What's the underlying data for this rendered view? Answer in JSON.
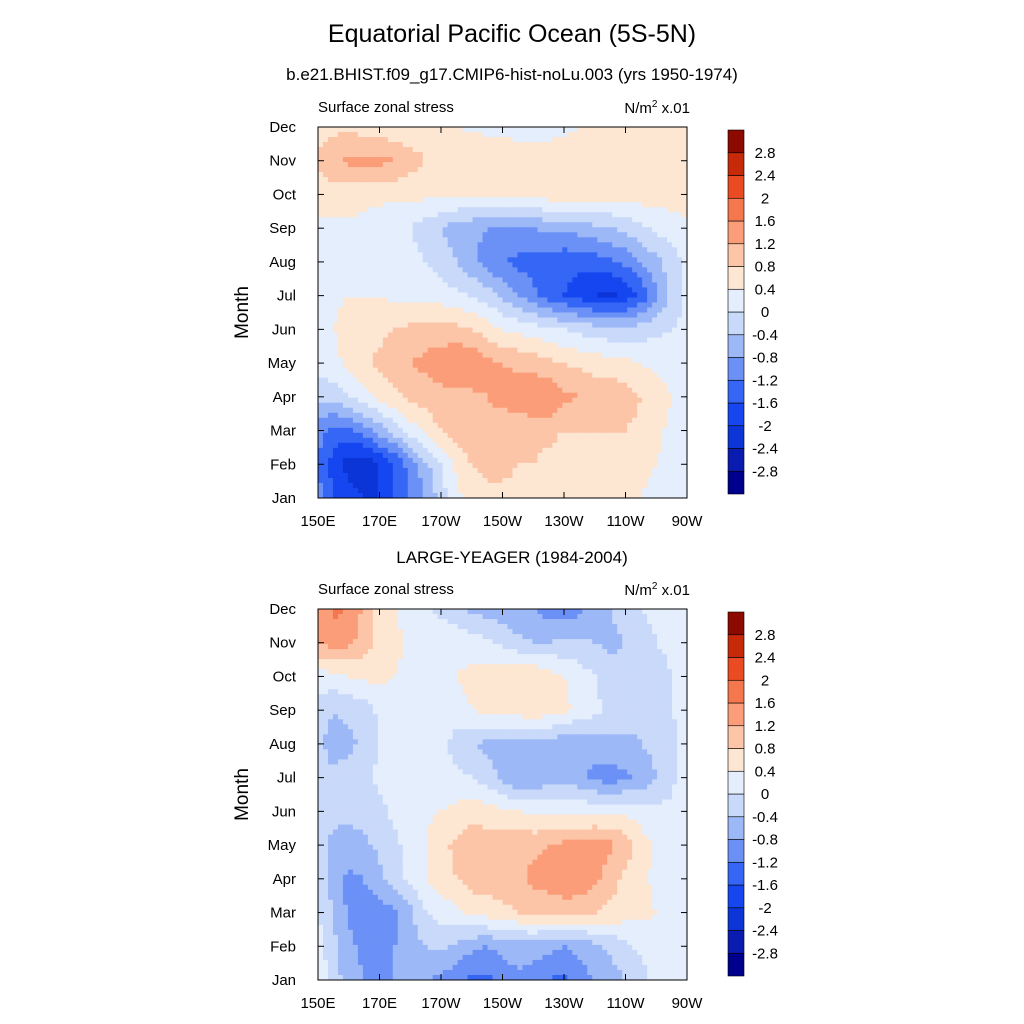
{
  "title": "Equatorial Pacific Ocean (5S-5N)",
  "chart_data": [
    {
      "type": "heatmap",
      "subtitle": "b.e21.BHIST.f09_g17.CMIP6-hist-noLu.003 (yrs 1950-1974)",
      "left_string": "Surface zonal stress",
      "right_string": "N/m",
      "right_superscript": "2",
      "right_suffix": " x.01",
      "ylabel": "Month",
      "x_ticks": [
        "150E",
        "170E",
        "170W",
        "150W",
        "130W",
        "110W",
        "90W"
      ],
      "y_ticks": [
        "Jan",
        "Feb",
        "Mar",
        "Apr",
        "May",
        "Jun",
        "Jul",
        "Aug",
        "Sep",
        "Oct",
        "Nov",
        "Dec"
      ],
      "x_lon": [
        150,
        155,
        160,
        165,
        170,
        175,
        180,
        185,
        190,
        195,
        200,
        205,
        210,
        215,
        220,
        225,
        230,
        235,
        240,
        245,
        250,
        255,
        260,
        265,
        270
      ],
      "z": [
        [
          -1.0,
          -1.6,
          -1.8,
          -2.0,
          -2.0,
          -1.6,
          -1.2,
          -0.8,
          -0.2,
          0.3,
          0.6,
          0.7,
          0.7,
          0.7,
          0.6,
          0.5,
          0.5,
          0.5,
          0.5,
          0.5,
          0.4,
          0.4,
          0.3,
          0.2,
          0.2
        ],
        [
          -1.2,
          -1.8,
          -2.2,
          -2.3,
          -2.0,
          -1.6,
          -1.0,
          -0.5,
          0.0,
          0.5,
          0.8,
          0.9,
          0.9,
          0.8,
          0.8,
          0.7,
          0.6,
          0.6,
          0.6,
          0.6,
          0.5,
          0.5,
          0.4,
          0.3,
          0.2
        ],
        [
          -1.0,
          -1.4,
          -1.3,
          -1.0,
          -0.6,
          -0.2,
          0.2,
          0.5,
          0.8,
          1.0,
          1.1,
          1.1,
          1.0,
          0.9,
          0.9,
          0.9,
          0.8,
          0.8,
          0.8,
          0.8,
          0.8,
          0.7,
          0.5,
          0.3,
          0.2
        ],
        [
          -0.3,
          -0.2,
          0.0,
          0.3,
          0.5,
          0.7,
          0.9,
          1.0,
          1.1,
          1.1,
          1.1,
          1.2,
          1.3,
          1.5,
          1.6,
          1.6,
          1.3,
          1.2,
          1.1,
          1.1,
          1.0,
          0.8,
          0.6,
          0.4,
          0.2
        ],
        [
          0.2,
          0.3,
          0.5,
          0.7,
          0.9,
          1.0,
          1.2,
          1.3,
          1.4,
          1.6,
          1.6,
          1.3,
          1.2,
          1.1,
          1.0,
          0.9,
          0.8,
          0.7,
          0.6,
          0.6,
          0.5,
          0.4,
          0.3,
          0.2,
          0.1
        ],
        [
          0.3,
          0.4,
          0.5,
          0.6,
          0.7,
          0.8,
          0.9,
          1.0,
          1.0,
          0.9,
          0.8,
          0.6,
          0.4,
          0.3,
          0.2,
          0.1,
          0.0,
          -0.1,
          -0.2,
          -0.3,
          -0.3,
          -0.2,
          -0.1,
          0.0,
          0.1
        ],
        [
          0.3,
          0.35,
          0.4,
          0.4,
          0.4,
          0.3,
          0.3,
          0.2,
          0.2,
          0.1,
          0.0,
          -0.2,
          -0.5,
          -0.8,
          -1.1,
          -1.4,
          -1.6,
          -1.8,
          -2.0,
          -2.1,
          -1.9,
          -1.5,
          -0.9,
          -0.3,
          0.1
        ],
        [
          0.2,
          0.3,
          0.3,
          0.3,
          0.3,
          0.2,
          0.1,
          0.0,
          -0.2,
          -0.4,
          -0.7,
          -1.0,
          -1.2,
          -1.3,
          -1.4,
          -1.4,
          -1.5,
          -1.5,
          -1.4,
          -1.3,
          -1.1,
          -0.8,
          -0.5,
          -0.2,
          0.1
        ],
        [
          0.3,
          0.3,
          0.3,
          0.3,
          0.2,
          0.1,
          0.0,
          -0.2,
          -0.4,
          -0.6,
          -0.7,
          -0.8,
          -0.8,
          -0.8,
          -0.8,
          -0.7,
          -0.7,
          -0.6,
          -0.5,
          -0.4,
          -0.3,
          -0.1,
          0.1,
          0.2,
          0.3
        ],
        [
          0.6,
          0.6,
          0.6,
          0.5,
          0.5,
          0.5,
          0.5,
          0.5,
          0.5,
          0.5,
          0.5,
          0.6,
          0.6,
          0.6,
          0.6,
          0.6,
          0.7,
          0.6,
          0.6,
          0.6,
          0.6,
          0.6,
          0.6,
          0.6,
          0.6
        ],
        [
          0.9,
          1.1,
          1.3,
          1.3,
          1.3,
          1.2,
          1.0,
          0.8,
          0.7,
          0.7,
          0.7,
          0.7,
          0.7,
          0.7,
          0.7,
          0.7,
          0.7,
          0.7,
          0.7,
          0.7,
          0.7,
          0.7,
          0.7,
          0.7,
          0.7
        ],
        [
          0.6,
          0.7,
          0.7,
          0.6,
          0.6,
          0.5,
          0.5,
          0.5,
          0.45,
          0.4,
          0.35,
          0.3,
          0.25,
          0.2,
          0.2,
          0.2,
          0.3,
          0.4,
          0.5,
          0.6,
          0.7,
          0.7,
          0.7,
          0.7,
          0.6
        ]
      ]
    },
    {
      "type": "heatmap",
      "subtitle": "LARGE-YEAGER (1984-2004)",
      "left_string": "Surface zonal stress",
      "right_string": "N/m",
      "right_superscript": "2",
      "right_suffix": " x.01",
      "ylabel": "Month",
      "x_ticks": [
        "150E",
        "170E",
        "170W",
        "150W",
        "130W",
        "110W",
        "90W"
      ],
      "y_ticks": [
        "Jan",
        "Feb",
        "Mar",
        "Apr",
        "May",
        "Jun",
        "Jul",
        "Aug",
        "Sep",
        "Oct",
        "Nov",
        "Dec"
      ],
      "x_lon": [
        150,
        155,
        160,
        165,
        170,
        175,
        180,
        185,
        190,
        195,
        200,
        205,
        210,
        215,
        220,
        225,
        230,
        235,
        240,
        245,
        250,
        255,
        260,
        265,
        270
      ],
      "z": [
        [
          0.3,
          -0.2,
          -0.6,
          -0.8,
          -0.8,
          -0.8,
          -0.8,
          -0.8,
          -0.9,
          -1.1,
          -1.3,
          -1.3,
          -1.0,
          -0.9,
          -1.0,
          -1.2,
          -1.3,
          -1.0,
          -0.8,
          -0.6,
          -0.4,
          -0.2,
          0.2,
          0.3,
          0.3
        ],
        [
          0.2,
          -0.3,
          -0.7,
          -0.9,
          -0.9,
          -0.8,
          -0.6,
          -0.4,
          -0.3,
          -0.5,
          -0.7,
          -0.8,
          -0.7,
          -0.6,
          -0.6,
          -0.7,
          -0.8,
          -0.7,
          -0.5,
          -0.3,
          -0.1,
          0.1,
          0.3,
          0.4,
          0.3
        ],
        [
          0.0,
          -0.4,
          -0.9,
          -1.0,
          -1.0,
          -0.9,
          -0.5,
          0.0,
          0.2,
          0.3,
          0.5,
          0.6,
          0.7,
          0.8,
          0.9,
          0.9,
          1.0,
          0.9,
          0.8,
          0.7,
          0.6,
          0.5,
          0.4,
          0.3,
          0.2
        ],
        [
          -0.2,
          -0.6,
          -0.9,
          -0.8,
          -0.5,
          -0.2,
          0.1,
          0.4,
          0.6,
          0.8,
          1.0,
          1.0,
          1.0,
          1.1,
          1.3,
          1.4,
          1.5,
          1.5,
          1.3,
          1.0,
          0.7,
          0.5,
          0.3,
          0.2,
          0.2
        ],
        [
          -0.2,
          -0.5,
          -0.6,
          -0.5,
          -0.3,
          -0.1,
          0.2,
          0.4,
          0.7,
          0.9,
          1.1,
          1.0,
          1.0,
          1.1,
          1.1,
          1.2,
          1.3,
          1.3,
          1.4,
          1.3,
          1.0,
          0.6,
          0.3,
          0.2,
          0.2
        ],
        [
          -0.2,
          -0.3,
          -0.3,
          -0.2,
          -0.1,
          0.1,
          0.2,
          0.3,
          0.4,
          0.5,
          0.6,
          0.6,
          0.5,
          0.4,
          0.3,
          0.3,
          0.3,
          0.3,
          0.3,
          0.3,
          0.3,
          0.2,
          0.1,
          0.1,
          0.2
        ],
        [
          -0.2,
          -0.3,
          -0.2,
          -0.1,
          0.1,
          0.2,
          0.3,
          0.3,
          0.2,
          0.1,
          0.0,
          -0.2,
          -0.5,
          -0.8,
          -0.8,
          -0.6,
          -0.5,
          -0.7,
          -0.9,
          -1.0,
          -0.9,
          -0.7,
          -0.4,
          -0.1,
          0.2
        ],
        [
          -0.3,
          -0.6,
          -0.5,
          -0.3,
          0.0,
          0.2,
          0.3,
          0.3,
          0.1,
          -0.2,
          -0.4,
          -0.5,
          -0.6,
          -0.5,
          -0.5,
          -0.6,
          -0.7,
          -0.7,
          -0.6,
          -0.5,
          -0.5,
          -0.4,
          -0.3,
          -0.1,
          0.1
        ],
        [
          -0.2,
          -0.4,
          -0.3,
          -0.2,
          0.1,
          0.2,
          0.3,
          0.3,
          0.3,
          0.3,
          0.4,
          0.5,
          0.6,
          0.6,
          0.7,
          0.6,
          0.5,
          0.3,
          0.1,
          -0.1,
          -0.2,
          -0.3,
          -0.2,
          0.0,
          0.1
        ],
        [
          0.2,
          0.3,
          0.4,
          0.5,
          0.5,
          0.4,
          0.3,
          0.3,
          0.3,
          0.4,
          0.5,
          0.6,
          0.7,
          0.8,
          0.8,
          0.6,
          0.4,
          0.2,
          0.0,
          -0.2,
          -0.3,
          -0.3,
          -0.2,
          0.0,
          0.1
        ],
        [
          1.2,
          1.4,
          1.3,
          1.0,
          0.7,
          0.5,
          0.3,
          0.3,
          0.3,
          0.3,
          0.2,
          0.1,
          -0.1,
          -0.3,
          -0.4,
          -0.4,
          -0.3,
          -0.3,
          -0.4,
          -0.5,
          -0.4,
          -0.2,
          0.0,
          0.1,
          0.2
        ],
        [
          1.2,
          1.7,
          1.6,
          1.1,
          0.6,
          0.4,
          0.3,
          0.1,
          -0.1,
          -0.3,
          -0.5,
          -0.6,
          -0.6,
          -0.7,
          -0.8,
          -1.0,
          -1.1,
          -0.9,
          -0.6,
          -0.4,
          -0.2,
          0.0,
          0.1,
          0.2,
          0.2
        ]
      ]
    }
  ],
  "colorbar": {
    "levels": [
      -2.8,
      -2.4,
      -2,
      -1.6,
      -1.2,
      -0.8,
      -0.4,
      0,
      0.4,
      0.8,
      1.2,
      1.6,
      2,
      2.4,
      2.8
    ],
    "labels": [
      "-2.8",
      "-2.4",
      "-2",
      "-1.6",
      "-1.2",
      "-0.8",
      "-0.4",
      "0",
      "0.4",
      "0.8",
      "1.2",
      "1.6",
      "2",
      "2.4",
      "2.8"
    ],
    "colors": [
      "#00008c",
      "#0a1cb0",
      "#0b35d6",
      "#1546f0",
      "#3566f5",
      "#6b91f7",
      "#9cb8f7",
      "#c9d9fa",
      "#e4eefd",
      "#fde6d2",
      "#fcc5a8",
      "#fa9d78",
      "#f5774d",
      "#ea4b22",
      "#c62a08",
      "#8c0a00"
    ]
  }
}
